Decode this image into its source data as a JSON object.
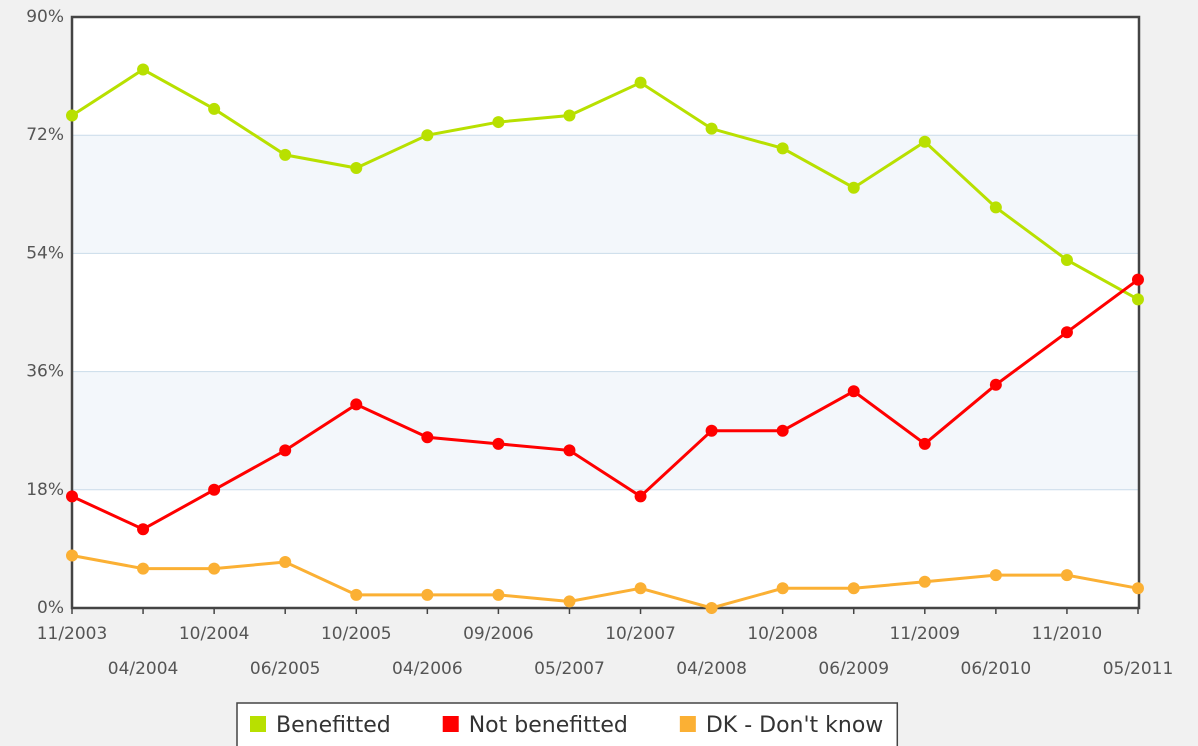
{
  "chart_data": {
    "type": "line",
    "categories": [
      "11/2003",
      "04/2004",
      "10/2004",
      "06/2005",
      "10/2005",
      "04/2006",
      "09/2006",
      "05/2007",
      "10/2007",
      "04/2008",
      "10/2008",
      "06/2009",
      "11/2009",
      "06/2010",
      "11/2010",
      "05/2011"
    ],
    "series": [
      {
        "name": "Benefitted",
        "color": "#b8e000",
        "values": [
          75,
          82,
          76,
          69,
          67,
          72,
          74,
          75,
          80,
          73,
          70,
          64,
          71,
          61,
          53,
          47
        ]
      },
      {
        "name": "Not benefitted",
        "color": "#ff0000",
        "values": [
          17,
          12,
          18,
          24,
          31,
          26,
          25,
          24,
          17,
          27,
          27,
          33,
          25,
          34,
          42,
          50
        ]
      },
      {
        "name": "DK - Don't know",
        "color": "#fbb034",
        "values": [
          8,
          6,
          6,
          7,
          2,
          2,
          2,
          1,
          3,
          0,
          3,
          3,
          4,
          5,
          5,
          3
        ]
      }
    ],
    "ylim": [
      0,
      90
    ],
    "yticks": [
      {
        "value": 0,
        "label": "0%"
      },
      {
        "value": 18,
        "label": "18%"
      },
      {
        "value": 36,
        "label": "36%"
      },
      {
        "value": 54,
        "label": "54%"
      },
      {
        "value": 72,
        "label": "72%"
      },
      {
        "value": 90,
        "label": "90%"
      }
    ],
    "grid": true,
    "legend": "bottom"
  }
}
